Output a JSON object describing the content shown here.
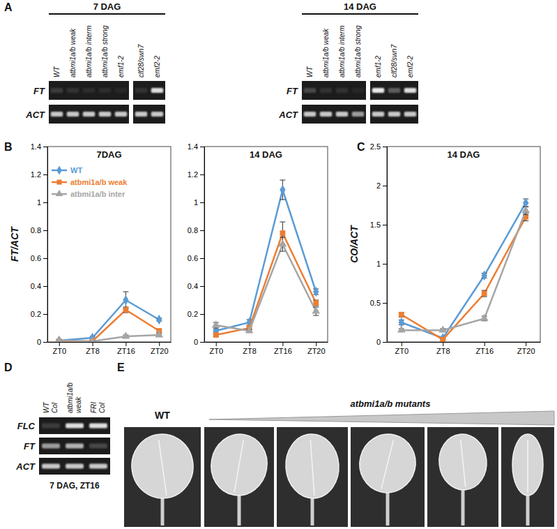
{
  "panel_labels": [
    "A",
    "B",
    "C",
    "D",
    "E"
  ],
  "chart_data": [
    {
      "type": "line",
      "title": "7DAG",
      "y_label": "FT/ACT",
      "categories": [
        "ZT0",
        "ZT8",
        "ZT16",
        "ZT20"
      ],
      "ylim": [
        0,
        1.4
      ],
      "yticks": [
        0,
        0.2,
        0.4,
        0.6,
        0.8,
        1,
        1.2,
        1.4
      ],
      "legend": "upper left",
      "series": [
        {
          "name": "WT",
          "color": "#5b9bd5",
          "marker": "diamond",
          "line_style": "solid",
          "values": [
            0.01,
            0.03,
            0.3,
            0.16
          ],
          "errors": [
            0.005,
            0.01,
            0.06,
            0.01
          ]
        },
        {
          "name": "atbmi1a/b weak",
          "color": "#ed7d31",
          "marker": "square",
          "line_style": "solid",
          "values": [
            0.005,
            0.005,
            0.23,
            0.08
          ],
          "errors": [
            0.003,
            0.003,
            0.02,
            0.01
          ]
        },
        {
          "name": "atbmi1a/b inter",
          "color": "#a5a5a5",
          "marker": "triangle",
          "line_style": "solid",
          "values": [
            0.01,
            0.005,
            0.04,
            0.05
          ],
          "errors": [
            0.003,
            0.003,
            0.01,
            0.01
          ]
        }
      ]
    },
    {
      "type": "line",
      "title": "14 DAG",
      "categories": [
        "ZT0",
        "ZT8",
        "ZT16",
        "ZT20"
      ],
      "ylim": [
        0,
        1.4
      ],
      "yticks": [
        0,
        0.2,
        0.4,
        0.6,
        0.8,
        1,
        1.2,
        1.4
      ],
      "series": [
        {
          "name": "WT",
          "color": "#5b9bd5",
          "marker": "diamond",
          "line_style": "solid",
          "values": [
            0.08,
            0.14,
            1.09,
            0.36
          ],
          "errors": [
            0.01,
            0.02,
            0.07,
            0.02
          ]
        },
        {
          "name": "atbmi1a/b weak",
          "color": "#ed7d31",
          "marker": "square",
          "line_style": "solid",
          "values": [
            0.05,
            0.1,
            0.78,
            0.28
          ],
          "errors": [
            0.01,
            0.01,
            0.08,
            0.02
          ]
        },
        {
          "name": "atbmi1a/b inter",
          "color": "#a5a5a5",
          "marker": "triangle",
          "line_style": "solid",
          "values": [
            0.12,
            0.08,
            0.7,
            0.22
          ],
          "errors": [
            0.02,
            0.01,
            0.05,
            0.03
          ]
        }
      ]
    },
    {
      "type": "line",
      "title": "14 DAG",
      "y_label": "CO/ACT",
      "categories": [
        "ZT0",
        "ZT8",
        "ZT16",
        "ZT20"
      ],
      "ylim": [
        0,
        2.5
      ],
      "yticks": [
        0,
        0.5,
        1,
        1.5,
        2,
        2.5
      ],
      "series": [
        {
          "name": "WT",
          "color": "#5b9bd5",
          "marker": "diamond",
          "line_style": "solid",
          "values": [
            0.25,
            0.05,
            0.85,
            1.78
          ],
          "errors": [
            0.03,
            0.01,
            0.03,
            0.05
          ]
        },
        {
          "name": "atbmi1a/b weak",
          "color": "#ed7d31",
          "marker": "square",
          "line_style": "solid",
          "values": [
            0.35,
            0.03,
            0.62,
            1.6
          ],
          "errors": [
            0.03,
            0.01,
            0.04,
            0.05
          ]
        },
        {
          "name": "atbmi1a/b inter",
          "color": "#a5a5a5",
          "marker": "triangle",
          "line_style": "solid",
          "values": [
            0.15,
            0.15,
            0.3,
            1.68
          ],
          "errors": [
            0.02,
            0.02,
            0.03,
            0.05
          ]
        }
      ]
    }
  ],
  "gel_a": {
    "row_labels": [
      "FT",
      "ACT"
    ],
    "groups": [
      {
        "title": "7 DAG",
        "blocks": [
          {
            "lanes": [
              "WT",
              "atbmi1a/b weak",
              "atbmi1a/b interm",
              "atbmi1a/b strong",
              "emf1-2"
            ],
            "bands": [
              [
                0.15,
                0.1,
                0.08,
                0.08,
                0.05
              ],
              [
                0.8,
                0.8,
                0.8,
                0.8,
                0.8
              ]
            ]
          },
          {
            "lanes": [
              "clf28/swn7",
              "emf2-2"
            ],
            "bands": [
              [
                0.1,
                0.9
              ],
              [
                0.8,
                0.8
              ]
            ]
          }
        ]
      },
      {
        "title": "14 DAG",
        "blocks": [
          {
            "lanes": [
              "WT",
              "atbmi1a/b weak",
              "atbmi1a/b interm",
              "atbmi1a/b strong"
            ],
            "bands": [
              [
                0.2,
                0.1,
                0.1,
                0.05
              ],
              [
                0.8,
                0.8,
                0.8,
                0.6
              ]
            ]
          },
          {
            "lanes": [
              "emf1-2",
              "clf28/swn7",
              "emf2-2"
            ],
            "bands": [
              [
                0.95,
                0.3,
                0.9
              ],
              [
                0.8,
                0.8,
                0.8
              ]
            ]
          }
        ]
      }
    ]
  },
  "gel_d": {
    "row_labels": [
      "FLC",
      "FT",
      "ACT"
    ],
    "lanes": [
      "WT Col",
      "atbmi1a/b weak",
      "FRI Col"
    ],
    "bands": [
      [
        0.15,
        0.9,
        0.9
      ],
      [
        0.6,
        0.7,
        0.2
      ],
      [
        0.8,
        0.8,
        0.8
      ]
    ],
    "caption": "7 DAG, ZT16"
  },
  "photos_e": {
    "wt_label": "WT",
    "mutant_label": "atbmi1a/b mutants"
  }
}
